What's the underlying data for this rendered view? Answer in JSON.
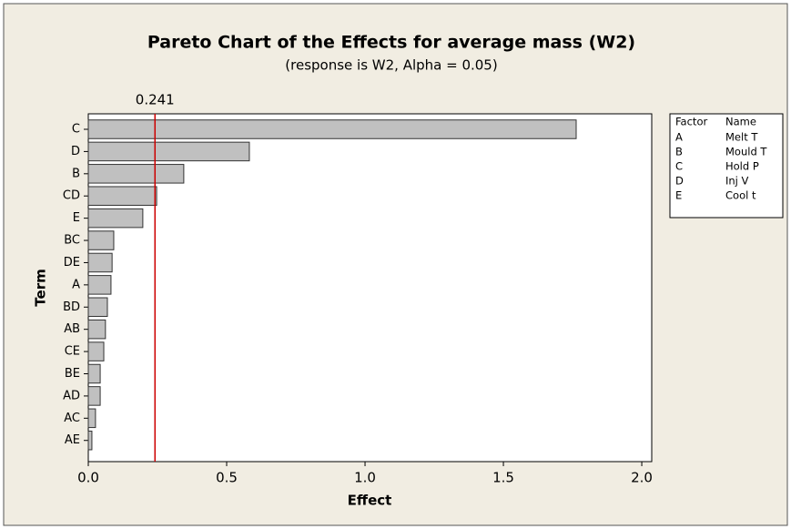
{
  "chart_data": {
    "type": "bar",
    "orientation": "horizontal",
    "title": "Pareto Chart of the Effects for average mass (W2)",
    "subtitle": "(response is W2, Alpha = 0.05)",
    "xlabel": "Effect",
    "ylabel": "Term",
    "categories": [
      "C",
      "D",
      "B",
      "CD",
      "E",
      "BC",
      "DE",
      "A",
      "BD",
      "AB",
      "CE",
      "BE",
      "AD",
      "AC",
      "AE"
    ],
    "values": [
      1.763,
      0.582,
      0.345,
      0.247,
      0.197,
      0.092,
      0.086,
      0.082,
      0.069,
      0.062,
      0.056,
      0.043,
      0.043,
      0.026,
      0.013
    ],
    "color": "#c0c0c0",
    "xlim": [
      0,
      2.036
    ],
    "xticks": [
      {
        "value": 0,
        "label": "0.0"
      },
      0.5,
      {
        "value": 1,
        "label": "1.0"
      },
      1.5,
      {
        "value": 2,
        "label": "2.0"
      }
    ],
    "reference_line": {
      "value": 0.241,
      "color": "#cc0000"
    },
    "legend": {
      "headers": [
        "Factor",
        "Name"
      ],
      "rows": [
        [
          "A",
          "Melt T"
        ],
        [
          "B",
          "Mould T"
        ],
        [
          "C",
          "Hold P"
        ],
        [
          "D",
          "Inj V"
        ],
        [
          "E",
          "Cool t"
        ]
      ]
    }
  }
}
